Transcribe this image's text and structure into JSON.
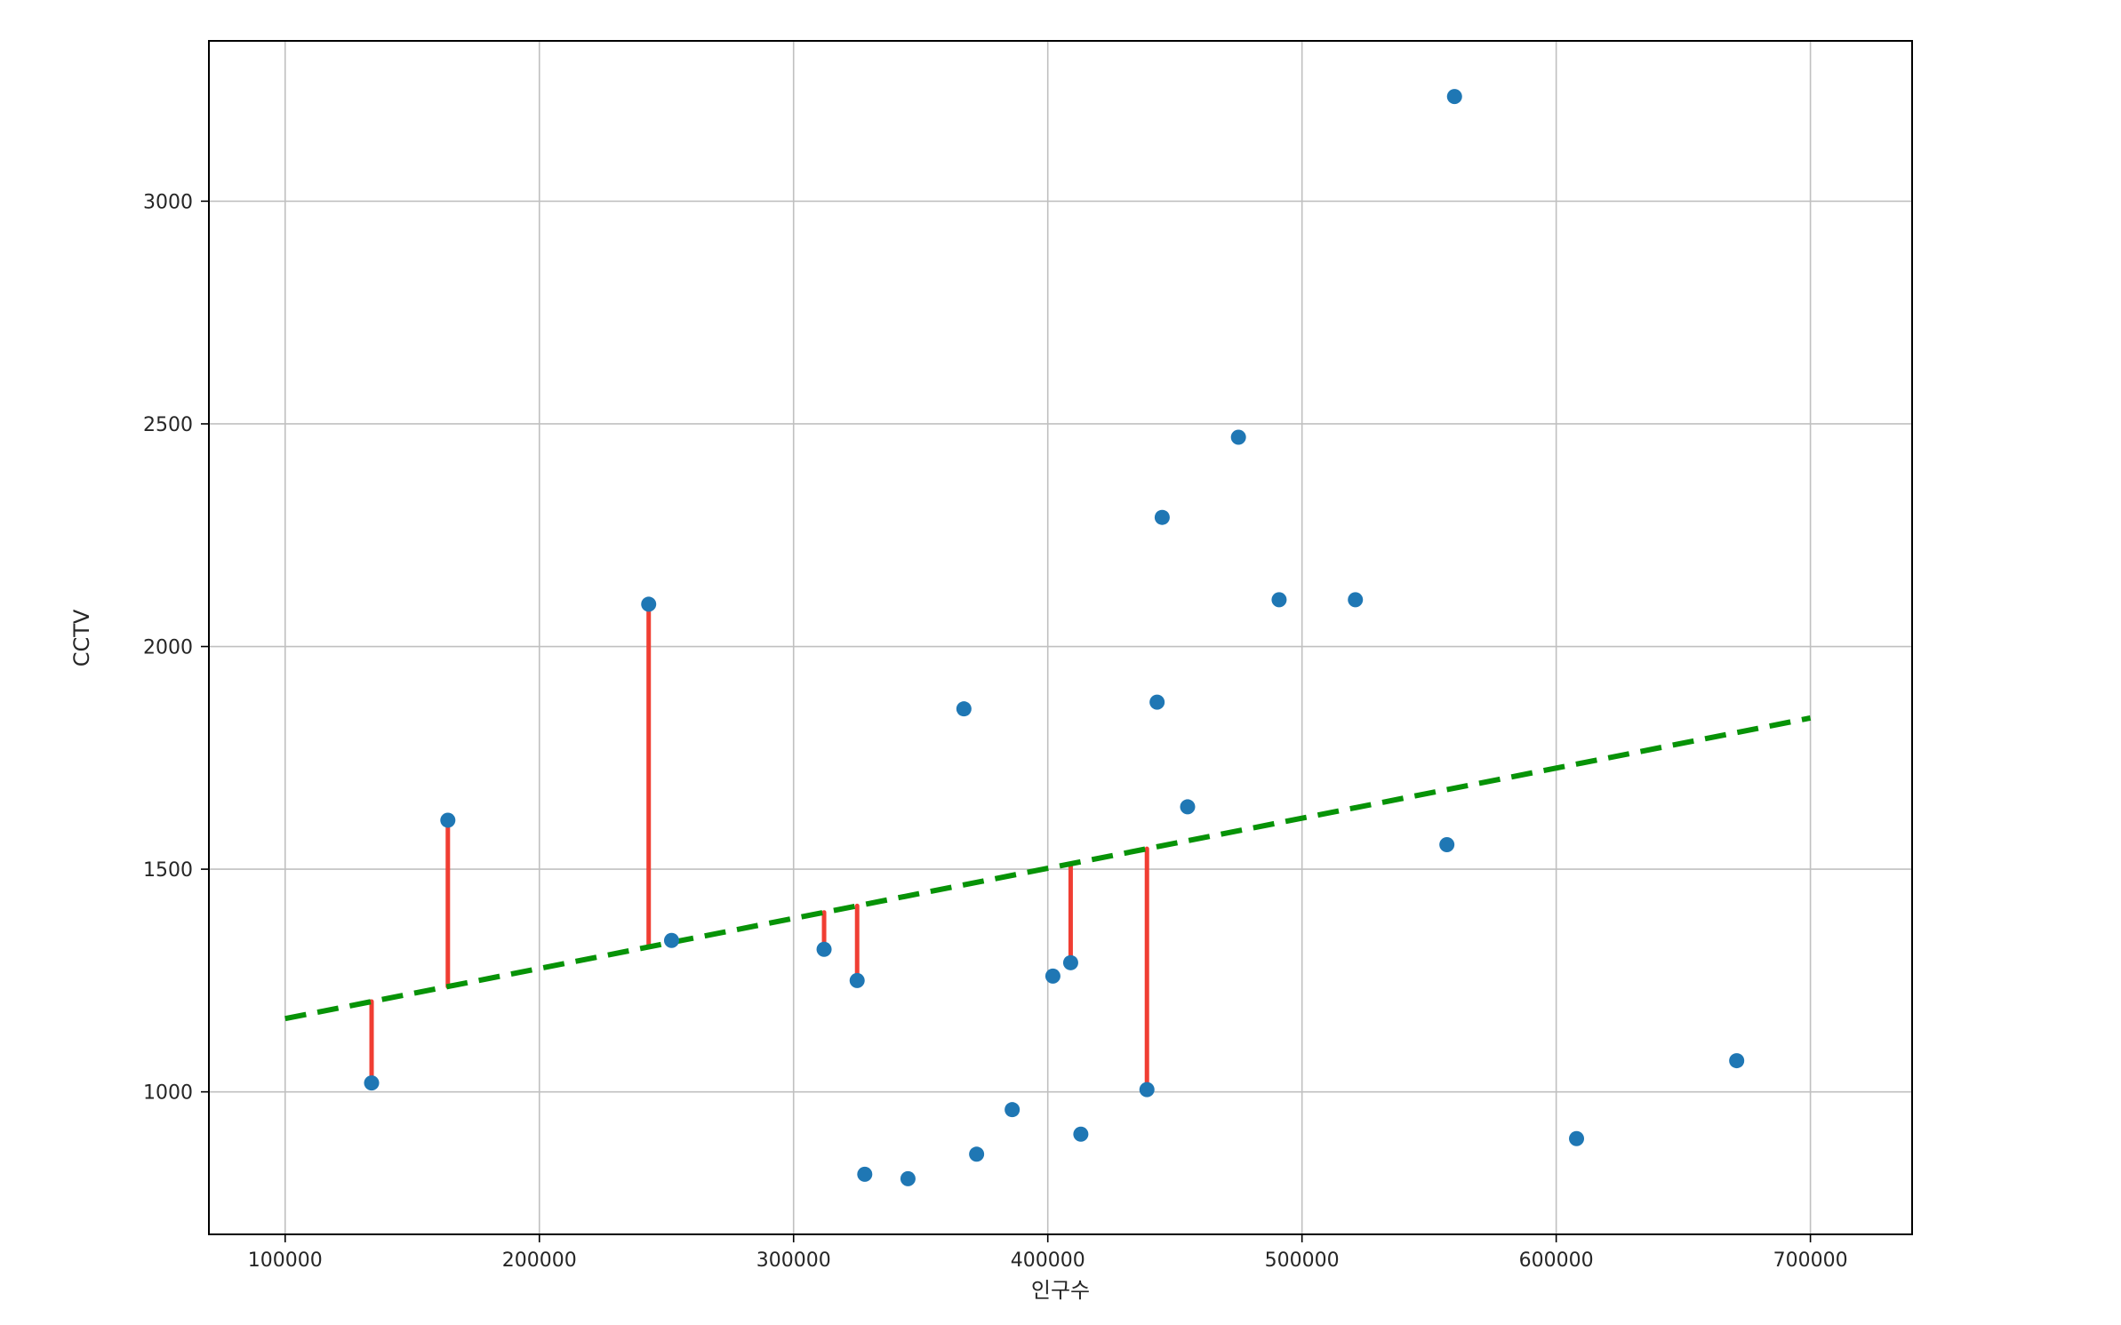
{
  "figure": {
    "background": "#ffffff"
  },
  "chart_data": {
    "type": "scatter",
    "title": "",
    "xlabel": "인구수",
    "ylabel": "CCTV",
    "xlim": [
      70000,
      740000
    ],
    "ylim": [
      680,
      3360
    ],
    "xticks": [
      100000,
      200000,
      300000,
      400000,
      500000,
      600000,
      700000
    ],
    "yticks": [
      1000,
      1500,
      2000,
      2500,
      3000
    ],
    "grid": true,
    "legend_position": "none",
    "point_color": "#1f77b4",
    "grid_color": "#c0c0c0",
    "frame_color": "#000000",
    "points": [
      [
        134000,
        1020
      ],
      [
        164000,
        1610
      ],
      [
        243000,
        2095
      ],
      [
        252000,
        1340
      ],
      [
        312000,
        1320
      ],
      [
        325000,
        1250
      ],
      [
        328000,
        815
      ],
      [
        345000,
        805
      ],
      [
        367000,
        1860
      ],
      [
        372000,
        860
      ],
      [
        386000,
        960
      ],
      [
        402000,
        1260
      ],
      [
        409000,
        1290
      ],
      [
        413000,
        905
      ],
      [
        439000,
        1005
      ],
      [
        443000,
        1875
      ],
      [
        445000,
        2290
      ],
      [
        455000,
        1640
      ],
      [
        475000,
        2470
      ],
      [
        491000,
        2105
      ],
      [
        521000,
        2105
      ],
      [
        557000,
        1555
      ],
      [
        560000,
        3235
      ],
      [
        608000,
        895
      ],
      [
        671000,
        1070
      ]
    ],
    "trendline": {
      "type": "linear",
      "slope": 0.001125,
      "intercept": 1052,
      "x_start": 100000,
      "x_end": 700000,
      "style": "dashed",
      "color": "#079307"
    },
    "residual_lines": {
      "x_values": [
        134000,
        164000,
        243000,
        312000,
        325000,
        409000,
        439000
      ],
      "color": "#f03e33"
    }
  }
}
